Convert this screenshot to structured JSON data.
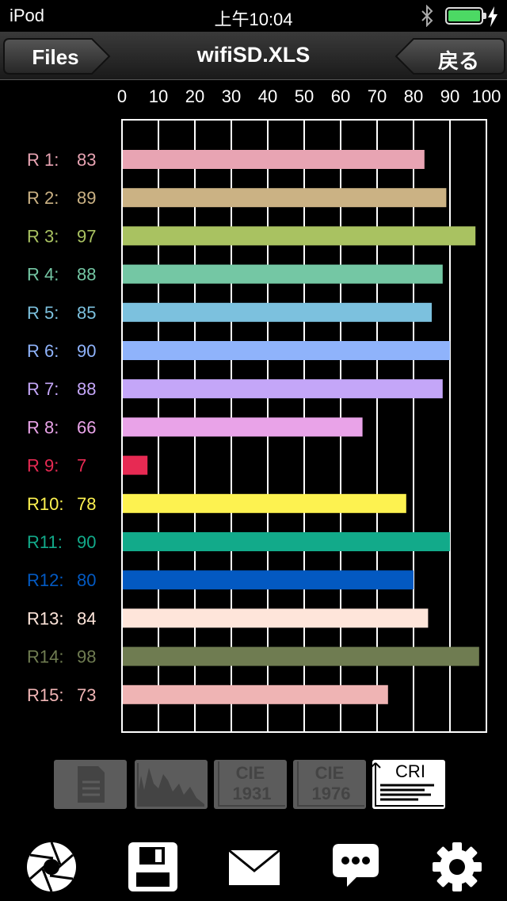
{
  "status_bar": {
    "carrier": "iPod",
    "time": "上午10:04"
  },
  "nav": {
    "title": "wifiSD.XLS",
    "left_button": "Files",
    "right_button": "戻る"
  },
  "modes": [
    {
      "icon": "document-icon",
      "active": false
    },
    {
      "icon": "spectrum-icon",
      "active": false
    },
    {
      "icon": "cie1931-icon",
      "label_top": "CIE",
      "label_bottom": "1931",
      "active": false
    },
    {
      "icon": "cie1976-icon",
      "label_top": "CIE",
      "label_bottom": "1976",
      "active": false
    },
    {
      "icon": "cri-icon",
      "label_top": "CRI",
      "active": true
    }
  ],
  "toolbar": [
    "aperture-icon",
    "save-icon",
    "mail-icon",
    "chat-icon",
    "gear-icon"
  ],
  "chart_data": {
    "type": "bar",
    "orientation": "horizontal",
    "xlim": [
      0,
      100
    ],
    "ticks": [
      "0",
      "10",
      "20",
      "30",
      "40",
      "50",
      "60",
      "70",
      "80",
      "90",
      "100"
    ],
    "grid": true,
    "categories": [
      "R 1:",
      "R 2:",
      "R 3:",
      "R 4:",
      "R 5:",
      "R 6:",
      "R 7:",
      "R 8:",
      "R 9:",
      "R10:",
      "R11:",
      "R12:",
      "R13:",
      "R14:",
      "R15:"
    ],
    "values": [
      83,
      89,
      97,
      88,
      85,
      90,
      88,
      66,
      7,
      78,
      90,
      80,
      84,
      98,
      73
    ],
    "colors": [
      "#e8a4b3",
      "#cbb284",
      "#a9c261",
      "#74c7a4",
      "#7cc1de",
      "#8fb3fb",
      "#c4a6f8",
      "#e9a3e8",
      "#e72a53",
      "#fdf250",
      "#12aa8a",
      "#0359c1",
      "#fee5da",
      "#6f7c51",
      "#efb4b4"
    ]
  }
}
